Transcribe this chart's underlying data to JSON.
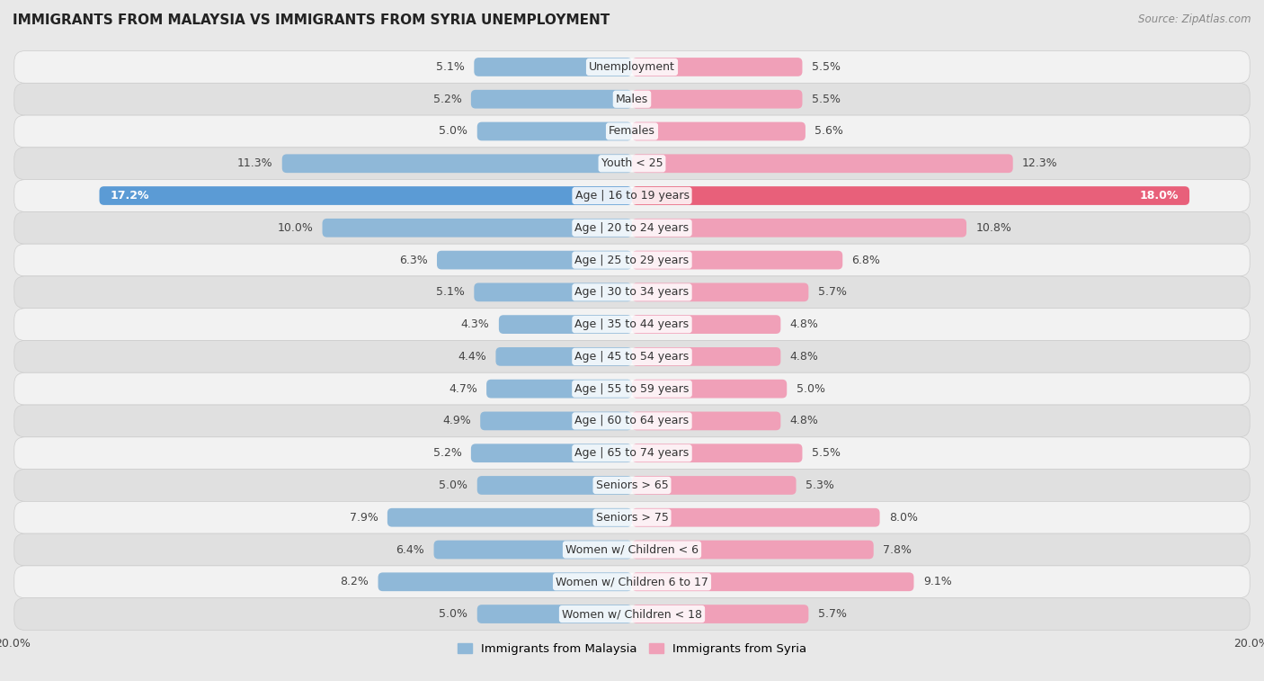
{
  "title": "IMMIGRANTS FROM MALAYSIA VS IMMIGRANTS FROM SYRIA UNEMPLOYMENT",
  "source": "Source: ZipAtlas.com",
  "categories": [
    "Unemployment",
    "Males",
    "Females",
    "Youth < 25",
    "Age | 16 to 19 years",
    "Age | 20 to 24 years",
    "Age | 25 to 29 years",
    "Age | 30 to 34 years",
    "Age | 35 to 44 years",
    "Age | 45 to 54 years",
    "Age | 55 to 59 years",
    "Age | 60 to 64 years",
    "Age | 65 to 74 years",
    "Seniors > 65",
    "Seniors > 75",
    "Women w/ Children < 6",
    "Women w/ Children 6 to 17",
    "Women w/ Children < 18"
  ],
  "malaysia_values": [
    5.1,
    5.2,
    5.0,
    11.3,
    17.2,
    10.0,
    6.3,
    5.1,
    4.3,
    4.4,
    4.7,
    4.9,
    5.2,
    5.0,
    7.9,
    6.4,
    8.2,
    5.0
  ],
  "syria_values": [
    5.5,
    5.5,
    5.6,
    12.3,
    18.0,
    10.8,
    6.8,
    5.7,
    4.8,
    4.8,
    5.0,
    4.8,
    5.5,
    5.3,
    8.0,
    7.8,
    9.1,
    5.7
  ],
  "malaysia_color": "#8fb8d8",
  "syria_color": "#f0a0b8",
  "malaysia_highlight_color": "#5b9bd5",
  "syria_highlight_color": "#e8607a",
  "background_color": "#e8e8e8",
  "row_bg_white": "#f2f2f2",
  "row_bg_gray": "#e0e0e0",
  "axis_limit": 20.0,
  "legend_malaysia": "Immigrants from Malaysia",
  "legend_syria": "Immigrants from Syria",
  "val_label_fontsize": 9,
  "cat_label_fontsize": 9
}
